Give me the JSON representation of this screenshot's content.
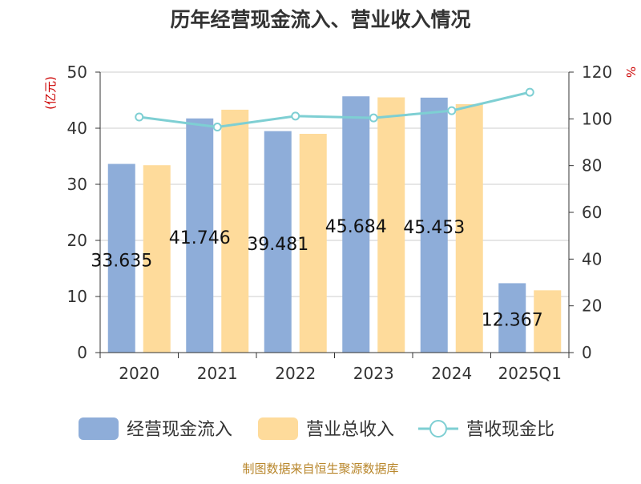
{
  "chart_data": {
    "type": "bar",
    "title": "历年经营现金流入、营业收入情况",
    "categories": [
      "2020",
      "2021",
      "2022",
      "2023",
      "2024",
      "2025Q1"
    ],
    "y_left": {
      "unit_label": "(亿元)",
      "ticks": [
        "0",
        "10",
        "20",
        "30",
        "40",
        "50"
      ],
      "min": 0,
      "max": 50
    },
    "y_right": {
      "unit_label": "%",
      "ticks": [
        "0",
        "20",
        "40",
        "60",
        "80",
        "100",
        "120"
      ],
      "min": 0,
      "max": 120
    },
    "series": [
      {
        "name": "经营现金流入",
        "type": "bar",
        "axis": "left",
        "color": "#8eadd9",
        "values": [
          33.635,
          41.746,
          39.481,
          45.684,
          45.453,
          12.367
        ],
        "labels": [
          "33.635",
          "41.746",
          "39.481",
          "45.684",
          "45.453",
          "12.367"
        ]
      },
      {
        "name": "营业总收入",
        "type": "bar",
        "axis": "left",
        "color": "#fedb9b",
        "values": [
          33.4,
          43.3,
          39.0,
          45.5,
          44.3,
          11.1
        ]
      },
      {
        "name": "营收现金比",
        "type": "line",
        "axis": "right",
        "color": "#7ecfd3",
        "values": [
          100.8,
          96.5,
          101.2,
          100.4,
          103.5,
          111.4
        ]
      }
    ],
    "grid": true,
    "legend_position": "bottom"
  },
  "footer": {
    "source": "制图数据来自恒生聚源数据库"
  },
  "colors": {
    "title": "#333333",
    "axis_label": "#cc0000",
    "source": "#b8862b",
    "grid": "#cccccc",
    "tick_text": "#333333"
  }
}
